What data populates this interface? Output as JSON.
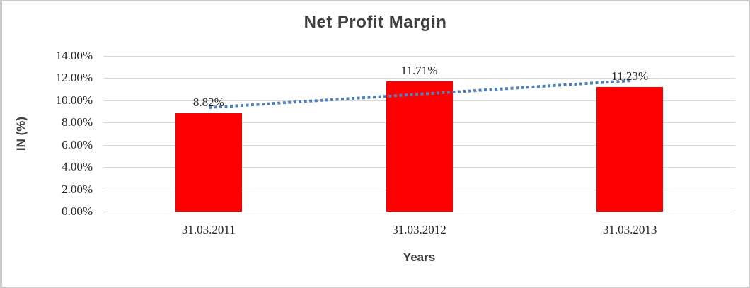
{
  "chart_data": {
    "type": "bar",
    "title": "Net Profit Margin",
    "xlabel": "Years",
    "ylabel": "IN (%)",
    "categories": [
      "31.03.2011",
      "31.03.2012",
      "31.03.2013"
    ],
    "values": [
      8.82,
      11.71,
      11.23
    ],
    "data_labels": [
      "8.82%",
      "11.71%",
      "11.23%"
    ],
    "ylim": [
      0,
      14
    ],
    "ytick_values": [
      0,
      2,
      4,
      6,
      8,
      10,
      12,
      14
    ],
    "ytick_labels": [
      "0.00%",
      "2.00%",
      "4.00%",
      "6.00%",
      "8.00%",
      "10.00%",
      "12.00%",
      "14.00%"
    ],
    "grid": true,
    "legend_position": "none",
    "bar_color": "#ff0000",
    "gridline_color": "#d9d9d9",
    "axis_line_color": "#b3b3b3",
    "label_color": "#262626",
    "title_color": "#404040",
    "trendline": {
      "type": "linear",
      "style": "dotted",
      "color": "#4f81bd",
      "start_value": 9.38,
      "end_value": 11.79
    }
  }
}
